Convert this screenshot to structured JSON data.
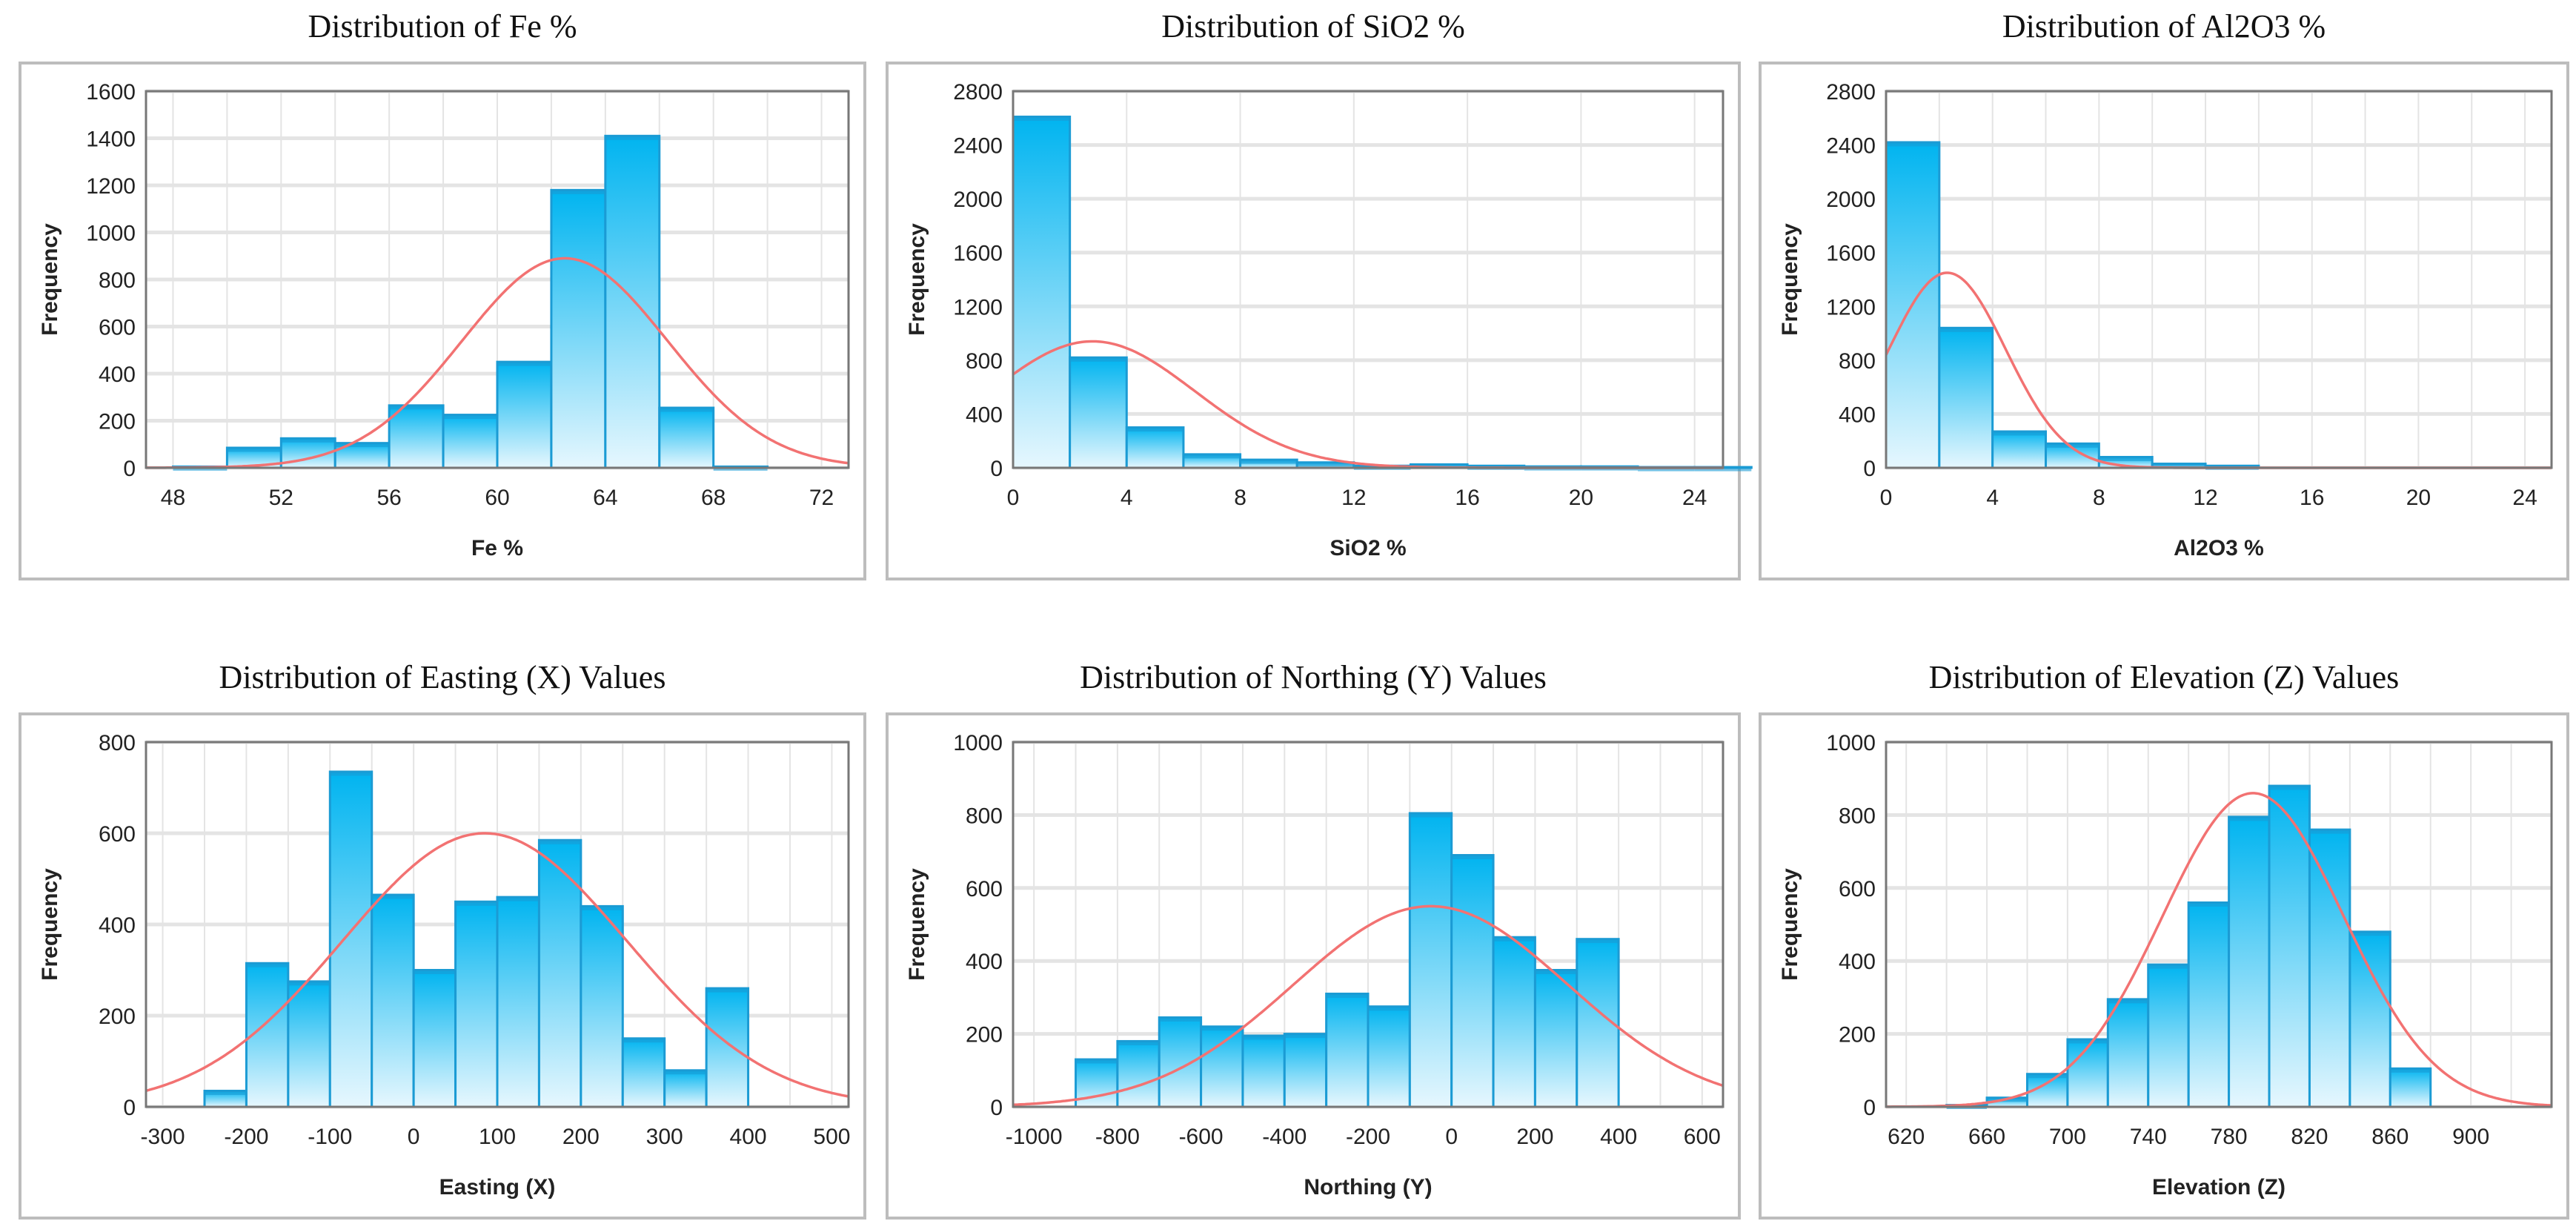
{
  "chart_data": [
    {
      "type": "bar",
      "title": "Distribution of Fe %",
      "xlabel": "Fe %",
      "ylabel": "Frequency",
      "bin_start": 48,
      "bin_width": 2,
      "values": [
        5,
        85,
        125,
        105,
        265,
        225,
        450,
        1180,
        1410,
        255,
        5
      ],
      "xlim": [
        47,
        73
      ],
      "ylim": [
        0,
        1600
      ],
      "xticks": [
        48,
        52,
        56,
        60,
        64,
        68,
        72
      ],
      "yticks": [
        0,
        200,
        400,
        600,
        800,
        1000,
        1200,
        1400,
        1600
      ],
      "xgrid_step": 2,
      "fit_curve": {
        "type": "normal",
        "mean": 62.5,
        "sd": 3.8,
        "peak": 890
      }
    },
    {
      "type": "bar",
      "title": "Distribution of SiO2 %",
      "xlabel": "SiO2 %",
      "ylabel": "Frequency",
      "bin_start": 0,
      "bin_width": 2,
      "values": [
        2610,
        820,
        300,
        100,
        60,
        40,
        15,
        25,
        15,
        10,
        10,
        5,
        5
      ],
      "xlim": [
        0,
        25
      ],
      "ylim": [
        0,
        2800
      ],
      "xticks": [
        0,
        4,
        8,
        12,
        16,
        20,
        24
      ],
      "yticks": [
        0,
        400,
        800,
        1200,
        1600,
        2000,
        2400,
        2800
      ],
      "xgrid_step": 4,
      "fit_curve": {
        "type": "normal",
        "mean": 2.8,
        "sd": 3.6,
        "peak": 940
      }
    },
    {
      "type": "bar",
      "title": "Distribution of Al2O3  %",
      "xlabel": "Al2O3 %",
      "ylabel": "Frequency",
      "bin_start": 0,
      "bin_width": 2,
      "values": [
        2420,
        1040,
        270,
        180,
        80,
        30,
        15
      ],
      "xlim": [
        0,
        25
      ],
      "ylim": [
        0,
        2800
      ],
      "xticks": [
        0,
        4,
        8,
        12,
        16,
        20,
        24
      ],
      "yticks": [
        0,
        400,
        800,
        1200,
        1600,
        2000,
        2400,
        2800
      ],
      "xgrid_step": 2,
      "fit_curve": {
        "type": "normal",
        "mean": 2.3,
        "sd": 2.2,
        "peak": 1450
      }
    },
    {
      "type": "bar",
      "title": "Distribution of Easting (X) Values",
      "xlabel": "Easting (X)",
      "ylabel": "Frequency",
      "bin_start": -250,
      "bin_width": 50,
      "values": [
        35,
        315,
        275,
        735,
        465,
        300,
        450,
        460,
        585,
        440,
        150,
        80,
        260
      ],
      "xlim": [
        -320,
        520
      ],
      "ylim": [
        0,
        800
      ],
      "xticks": [
        -300,
        -200,
        -100,
        0,
        100,
        200,
        300,
        400,
        500
      ],
      "yticks": [
        0,
        200,
        400,
        600,
        800
      ],
      "xgrid_step": 50,
      "fit_curve": {
        "type": "normal",
        "mean": 85,
        "sd": 170,
        "peak": 600
      }
    },
    {
      "type": "bar",
      "title": "Distribution of Northing  (Y) Values",
      "xlabel": "Northing (Y)",
      "ylabel": "Frequency",
      "bin_start": -900,
      "bin_width": 100,
      "values": [
        130,
        180,
        245,
        220,
        195,
        200,
        310,
        275,
        805,
        690,
        465,
        375,
        460
      ],
      "xlim": [
        -1050,
        650
      ],
      "ylim": [
        0,
        1000
      ],
      "xticks": [
        -1000,
        -800,
        -600,
        -400,
        -200,
        0,
        200,
        400,
        600
      ],
      "yticks": [
        0,
        200,
        400,
        600,
        800,
        1000
      ],
      "xgrid_step": 100,
      "fit_curve": {
        "type": "normal",
        "mean": -50,
        "sd": 330,
        "peak": 550
      }
    },
    {
      "type": "bar",
      "title": "Distribution of Elevation  (Z) Values",
      "xlabel": "Elevation (Z)",
      "ylabel": "Frequency",
      "bin_start": 640,
      "bin_width": 20,
      "values": [
        5,
        25,
        90,
        185,
        295,
        390,
        560,
        795,
        880,
        760,
        480,
        105
      ],
      "xlim": [
        610,
        940
      ],
      "ylim": [
        0,
        1000
      ],
      "xticks": [
        620,
        660,
        700,
        740,
        780,
        820,
        860,
        900
      ],
      "yticks": [
        0,
        200,
        400,
        600,
        800,
        1000
      ],
      "xgrid_step": 20,
      "fit_curve": {
        "type": "normal",
        "mean": 792,
        "sd": 45,
        "peak": 860
      }
    }
  ],
  "colors": {
    "bar_top": "#00b4f0",
    "bar_bottom": "#e6f7fe",
    "bar_edge": "#1b9bd4",
    "curve": "#f27272",
    "grid": "#e4e4e4",
    "frame": "#bdbdbd"
  }
}
